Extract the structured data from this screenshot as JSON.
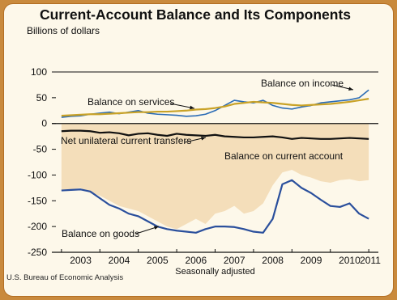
{
  "colors": {
    "outer_border": "#c98a3d",
    "panel_bg": "#fdf8ea",
    "current_account_fill": "#f4deba",
    "income_line": "#2a6bb5",
    "services_line": "#c9a227",
    "transfers_line": "#111111",
    "goods_line": "#2a4f9c"
  },
  "chart_data": {
    "type": "line",
    "title": "Current-Account Balance and Its Components",
    "ylabel": "Billions of dollars",
    "xlabel": "Seasonally adjusted",
    "source": "U.S. Bureau of Economic Analysis",
    "ylim": [
      -250,
      100
    ],
    "xlim": [
      2002.75,
      2011.25
    ],
    "y_ticks": [
      100,
      50,
      0,
      -50,
      -100,
      -150,
      -200,
      -250
    ],
    "x_ticks": [
      "2003",
      "2004",
      "2005",
      "2006",
      "2007",
      "2008",
      "2009",
      "2010",
      "2011"
    ],
    "grid": false,
    "x": [
      2003.0,
      2003.25,
      2003.5,
      2003.75,
      2004.0,
      2004.25,
      2004.5,
      2004.75,
      2005.0,
      2005.25,
      2005.5,
      2005.75,
      2006.0,
      2006.25,
      2006.5,
      2006.75,
      2007.0,
      2007.25,
      2007.5,
      2007.75,
      2008.0,
      2008.25,
      2008.5,
      2008.75,
      2009.0,
      2009.25,
      2009.5,
      2009.75,
      2010.0,
      2010.25,
      2010.5,
      2010.75,
      2011.0
    ],
    "series": [
      {
        "name": "Balance on income",
        "values": [
          12,
          14,
          15,
          18,
          20,
          22,
          19,
          22,
          25,
          20,
          18,
          17,
          16,
          14,
          15,
          18,
          25,
          35,
          45,
          42,
          40,
          45,
          35,
          30,
          28,
          32,
          35,
          40,
          42,
          44,
          46,
          50,
          65
        ]
      },
      {
        "name": "Balance on services",
        "values": [
          15,
          16,
          17,
          18,
          18,
          19,
          20,
          21,
          22,
          22,
          23,
          23,
          24,
          25,
          27,
          28,
          30,
          33,
          38,
          40,
          42,
          41,
          40,
          38,
          36,
          35,
          36,
          37,
          38,
          40,
          42,
          45,
          48
        ]
      },
      {
        "name": "Net unilateral current transfers",
        "values": [
          -15,
          -14,
          -14,
          -15,
          -18,
          -17,
          -19,
          -23,
          -20,
          -19,
          -22,
          -24,
          -20,
          -22,
          -23,
          -24,
          -22,
          -25,
          -26,
          -27,
          -27,
          -26,
          -25,
          -27,
          -30,
          -28,
          -29,
          -30,
          -30,
          -29,
          -28,
          -29,
          -30
        ]
      },
      {
        "name": "Balance on current account",
        "values": [
          -130,
          -128,
          -125,
          -135,
          -140,
          -150,
          -160,
          -165,
          -170,
          -180,
          -190,
          -200,
          -205,
          -195,
          -185,
          -195,
          -175,
          -170,
          -160,
          -175,
          -170,
          -155,
          -120,
          -95,
          -90,
          -100,
          -105,
          -112,
          -115,
          -110,
          -108,
          -112,
          -110
        ]
      },
      {
        "name": "Balance on goods",
        "values": [
          -130,
          -129,
          -128,
          -132,
          -145,
          -158,
          -165,
          -175,
          -180,
          -190,
          -200,
          -205,
          -208,
          -210,
          -212,
          -205,
          -200,
          -200,
          -201,
          -205,
          -210,
          -212,
          -185,
          -118,
          -110,
          -125,
          -135,
          -148,
          -160,
          -162,
          -155,
          -175,
          -185
        ]
      }
    ],
    "annotations": [
      "Balance on income",
      "Balance on services",
      "Net unilateral current transfers",
      "Balance on current account",
      "Balance on goods"
    ]
  }
}
